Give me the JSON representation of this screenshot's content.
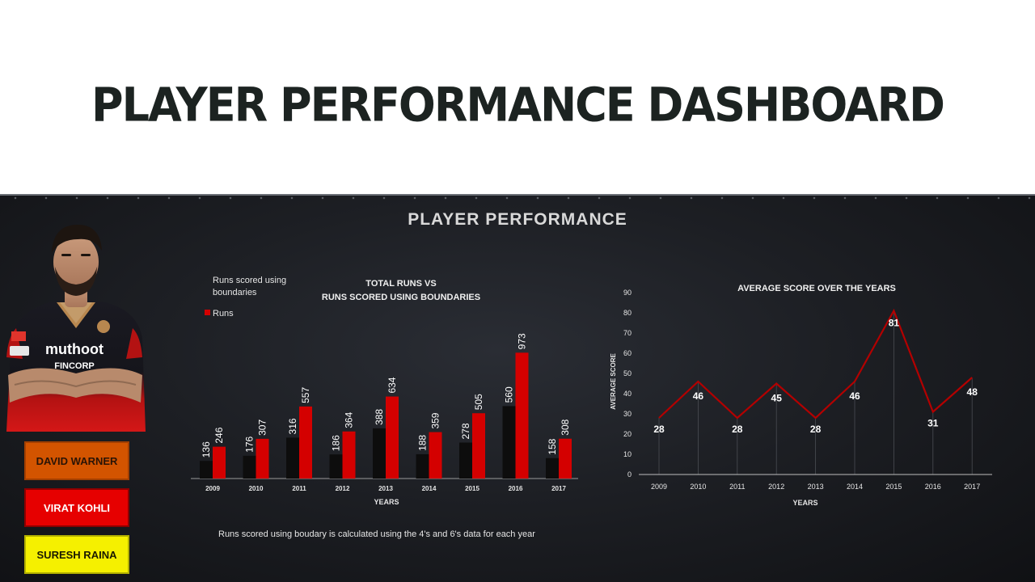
{
  "header": {
    "title": "PLAYER PERFORMANCE DASHBOARD"
  },
  "panel": {
    "title": "PLAYER PERFORMANCE",
    "footnote": "Runs scored using boudary is calculated using the 4's and 6's data for each year"
  },
  "players": [
    {
      "label": "DAVID WARNER"
    },
    {
      "label": "VIRAT KOHLI"
    },
    {
      "label": "SURESH RAINA"
    }
  ],
  "colors": {
    "boundaries": "#0d0d0d",
    "runs": "#d40000",
    "line": "#b30000",
    "warner": "#d35400",
    "kohli": "#e60000",
    "raina": "#f5f000"
  },
  "chart_data": [
    {
      "type": "bar",
      "title_lines": [
        "TOTAL RUNS VS",
        "RUNS SCORED USING BOUNDARIES"
      ],
      "xlabel": "YEARS",
      "ylabel": "",
      "legend": [
        "Runs scored using",
        "boundaries"
      ],
      "legend_runs": "Runs",
      "legend_position": "top-left",
      "categories": [
        "2009",
        "2010",
        "2011",
        "2012",
        "2013",
        "2014",
        "2015",
        "2016",
        "2017"
      ],
      "series": [
        {
          "name": "Runs scored using boundaries",
          "values": [
            136,
            176,
            316,
            186,
            388,
            188,
            278,
            560,
            158
          ]
        },
        {
          "name": "Runs",
          "values": [
            246,
            307,
            557,
            364,
            634,
            359,
            505,
            973,
            308
          ]
        }
      ],
      "ylim": [
        0,
        1000
      ]
    },
    {
      "type": "line",
      "title": "AVERAGE SCORE OVER THE YEARS",
      "xlabel": "YEARS",
      "ylabel": "AVERAGE SCORE",
      "categories": [
        "2009",
        "2010",
        "2011",
        "2012",
        "2013",
        "2014",
        "2015",
        "2016",
        "2017"
      ],
      "values": [
        28,
        46,
        28,
        45,
        28,
        46,
        81,
        31,
        48
      ],
      "yticks": [
        0,
        10,
        20,
        30,
        40,
        50,
        60,
        70,
        80,
        90
      ],
      "ylim": [
        0,
        90
      ]
    }
  ]
}
